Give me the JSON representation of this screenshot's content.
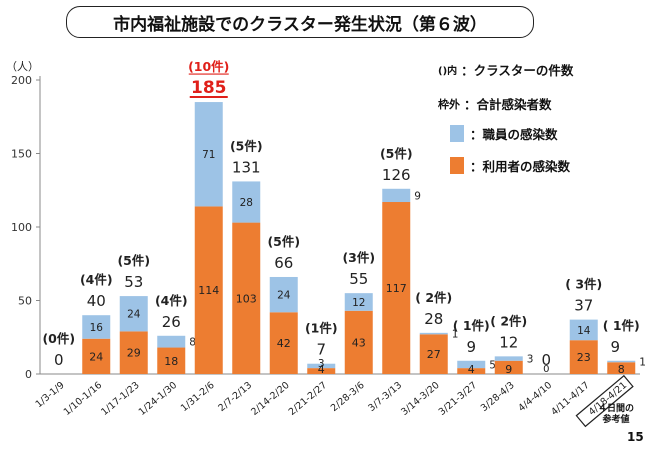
{
  "title": "市内福祉施設でのクラスター発生状況（第６波）",
  "unit_label": "（人）",
  "legend": {
    "cluster_key": "()内",
    "cluster_text": "：クラスターの件数",
    "total_key": "枠外",
    "total_text": "：合計感染者数",
    "staff_text": "：職員の感染数",
    "user_text": "：利用者の感染数"
  },
  "note": "４日間の\n参考値",
  "page_number": "15",
  "colors": {
    "staff": "#9dc3e6",
    "user": "#ed7d31",
    "highlight": "#e0201a"
  },
  "chart_data": {
    "type": "bar",
    "stacked": true,
    "categories": [
      "1/3-1/9",
      "1/10-1/16",
      "1/17-1/23",
      "1/24-1/30",
      "1/31-2/6",
      "2/7-2/13",
      "2/14-2/20",
      "2/21-2/27",
      "2/28-3/6",
      "3/7-3/13",
      "3/14-3/20",
      "3/21-3/27",
      "3/28-4/3",
      "4/4-4/10",
      "4/11-4/17",
      "4/18-4/21"
    ],
    "series": [
      {
        "name": "利用者の感染数",
        "values": [
          0,
          24,
          29,
          18,
          114,
          103,
          42,
          4,
          43,
          117,
          27,
          4,
          9,
          0,
          23,
          8
        ]
      },
      {
        "name": "職員の感染数",
        "values": [
          0,
          16,
          24,
          8,
          71,
          28,
          24,
          3,
          12,
          9,
          1,
          5,
          3,
          0,
          14,
          1
        ]
      }
    ],
    "totals": [
      "0",
      "40",
      "53",
      "26",
      "185",
      "131",
      "66",
      "7",
      "55",
      "126",
      "28",
      "9",
      "12",
      "0",
      "37",
      "9"
    ],
    "cluster_labels": [
      "(0件)",
      "(4件)",
      "(5件)",
      "(4件)",
      "(10件)",
      "(5件)",
      "(5件)",
      "(1件)",
      "(3件)",
      "(5件)",
      "( 2件)",
      "( 1件)",
      "( 2件)",
      "",
      "( 3件)",
      "( 1件)"
    ],
    "ylim": [
      0,
      200
    ],
    "yticks": [
      0,
      50,
      100,
      150,
      200
    ],
    "grid": false,
    "legend_position": "right"
  }
}
